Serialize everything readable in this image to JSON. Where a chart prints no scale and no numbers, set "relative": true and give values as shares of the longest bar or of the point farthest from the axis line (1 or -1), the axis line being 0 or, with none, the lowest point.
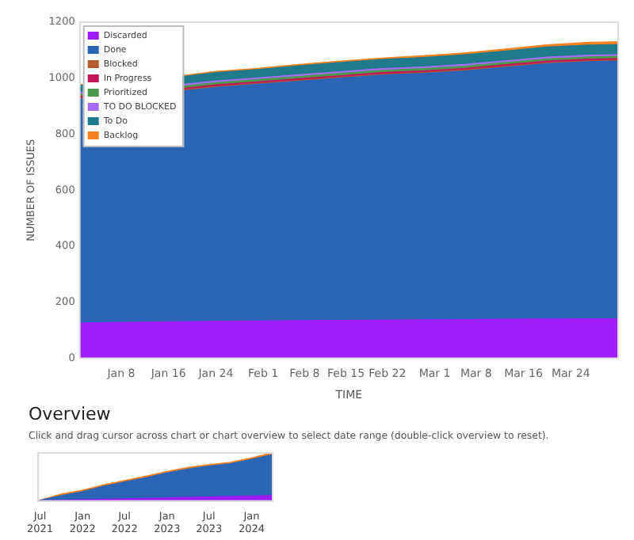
{
  "chart_data": [
    {
      "type": "area",
      "stacked": true,
      "xlabel": "TIME",
      "ylabel": "NUMBER OF ISSUES",
      "x": [
        "--01-01",
        "--01-19",
        "--01-24",
        "--01-31",
        "--02-07",
        "--02-14",
        "--02-21",
        "--02-28",
        "--03-06",
        "--03-13",
        "--03-20",
        "--03-27",
        "--04-01"
      ],
      "xlim": [
        "--01-01",
        "--04-01"
      ],
      "xticks": [
        {
          "value": "--01-08",
          "label": "Jan 8"
        },
        {
          "value": "--01-16",
          "label": "Jan 16"
        },
        {
          "value": "--01-24",
          "label": "Jan 24"
        },
        {
          "value": "--02-01",
          "label": "Feb 1"
        },
        {
          "value": "--02-08",
          "label": "Feb 8"
        },
        {
          "value": "--02-15",
          "label": "Feb 15"
        },
        {
          "value": "--02-22",
          "label": "Feb 22"
        },
        {
          "value": "--03-01",
          "label": "Mar 1"
        },
        {
          "value": "--03-08",
          "label": "Mar 8"
        },
        {
          "value": "--03-16",
          "label": "Mar 16"
        },
        {
          "value": "--03-24",
          "label": "Mar 24"
        }
      ],
      "ylim": [
        0,
        1200
      ],
      "yticks": [
        0,
        200,
        400,
        600,
        800,
        1000,
        1200
      ],
      "grid": false,
      "legend": "top left",
      "series": [
        {
          "name": "Discarded",
          "color": "#9d1cf7",
          "values": [
            125,
            130,
            131,
            132,
            133,
            134,
            135,
            136,
            137,
            138,
            139,
            140,
            140
          ]
        },
        {
          "name": "Done",
          "color": "#2b65b5",
          "values": [
            800,
            825,
            835,
            845,
            855,
            865,
            875,
            880,
            888,
            900,
            912,
            918,
            920
          ]
        },
        {
          "name": "Blocked",
          "color": "#b35a2e",
          "values": [
            3,
            3,
            3,
            3,
            3,
            3,
            3,
            3,
            3,
            3,
            3,
            3,
            3
          ]
        },
        {
          "name": "In Progress",
          "color": "#c2185b",
          "values": [
            6,
            6,
            6,
            6,
            6,
            6,
            6,
            6,
            6,
            6,
            6,
            6,
            6
          ]
        },
        {
          "name": "Prioritized",
          "color": "#4a9a4e",
          "values": [
            8,
            8,
            8,
            8,
            8,
            8,
            8,
            8,
            8,
            8,
            8,
            8,
            8
          ]
        },
        {
          "name": "TO DO BLOCKED",
          "color": "#a66bf5",
          "values": [
            6,
            6,
            6,
            6,
            6,
            6,
            6,
            6,
            6,
            6,
            6,
            6,
            6
          ]
        },
        {
          "name": "To Do",
          "color": "#1f7a8c",
          "values": [
            25,
            28,
            30,
            30,
            32,
            33,
            33,
            34,
            35,
            35,
            36,
            36,
            36
          ]
        },
        {
          "name": "Backlog",
          "color": "#f5821f",
          "values": [
            3,
            4,
            4,
            4,
            5,
            5,
            5,
            6,
            6,
            7,
            8,
            10,
            10
          ]
        }
      ]
    },
    {
      "type": "area",
      "stacked": true,
      "relative": true,
      "title": "Overview",
      "annotations": [
        "Click and drag cursor across chart or chart overview to select date range (double-click overview to reset)."
      ],
      "x": [
        "2021-06-23",
        "2021-10-01",
        "2022-01-01",
        "2022-04-01",
        "2022-07-01",
        "2022-10-01",
        "2023-01-01",
        "2023-04-01",
        "2023-07-01",
        "2023-10-01",
        "2024-01-01",
        "2024-04-01"
      ],
      "xlim": [
        "2021-06-23",
        "2024-04-01"
      ],
      "xticks": [
        {
          "value": "2021-07-01",
          "label": "Jul 2021"
        },
        {
          "value": "2022-01-01",
          "label": "Jan 2022"
        },
        {
          "value": "2022-07-01",
          "label": "Jul 2022"
        },
        {
          "value": "2023-01-01",
          "label": "Jan 2023"
        },
        {
          "value": "2023-07-01",
          "label": "Jul 2023"
        },
        {
          "value": "2024-01-01",
          "label": "Jan 2024"
        }
      ],
      "legend": false,
      "grid": false,
      "series": [
        {
          "color": "#9d1cf7",
          "values": [
            0,
            0.01,
            0.02,
            0.03,
            0.04,
            0.05,
            0.06,
            0.07,
            0.08,
            0.09,
            0.1,
            0.11
          ]
        },
        {
          "color": "#2b65b5",
          "values": [
            0,
            0.1,
            0.17,
            0.27,
            0.35,
            0.43,
            0.52,
            0.59,
            0.64,
            0.68,
            0.76,
            0.85
          ]
        },
        {
          "color": "#f5821f",
          "values": [
            0,
            0.03,
            0.03,
            0.03,
            0.03,
            0.03,
            0.03,
            0.03,
            0.03,
            0.03,
            0.03,
            0.04
          ]
        }
      ]
    }
  ]
}
